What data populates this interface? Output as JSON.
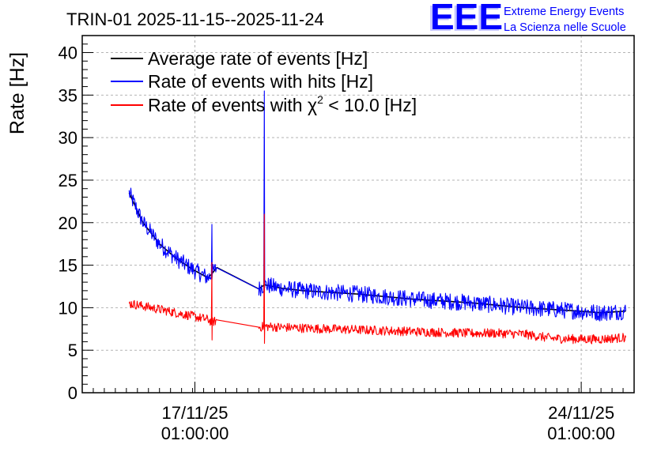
{
  "chart_data": {
    "type": "line",
    "title": "TRIN-01 2025-11-15--2025-11-24",
    "xlabel": "",
    "ylabel": "Rate [Hz]",
    "x_unit": "days since 2025-11-15 00:00",
    "xlim": [
      0.0,
      10.0
    ],
    "ylim": [
      0,
      42
    ],
    "y_ticks": [
      0,
      5,
      10,
      15,
      20,
      25,
      30,
      35,
      40
    ],
    "x_ticks": [
      {
        "x": 2.0417,
        "line1": "17/11/25",
        "line2": "01:00:00"
      },
      {
        "x": 9.0417,
        "line1": "24/11/25",
        "line2": "01:00:00"
      }
    ],
    "grid": true,
    "legend_position": "top-left",
    "x": [
      0.85,
      1.1,
      1.4,
      1.7,
      2.0,
      2.28,
      2.35,
      2.45,
      3.2,
      3.3,
      3.6,
      4.0,
      4.5,
      5.0,
      5.5,
      6.0,
      6.5,
      7.0,
      7.5,
      8.0,
      8.5,
      9.0,
      9.4,
      9.85
    ],
    "gap_index": 8,
    "series": [
      {
        "name": "Average rate of events [Hz]",
        "label_text": "Average rate of events [Hz]",
        "color": "#000000",
        "values": [
          23.5,
          20.0,
          17.5,
          15.8,
          14.5,
          13.5,
          14.0,
          14.8,
          12.2,
          12.7,
          12.3,
          12.0,
          11.8,
          11.6,
          11.3,
          11.0,
          10.8,
          10.6,
          10.3,
          10.0,
          9.8,
          9.6,
          9.4,
          9.6
        ]
      },
      {
        "name": "Rate of events with hits [Hz]",
        "label_text": "Rate of events with hits [Hz]",
        "color": "#0000ff",
        "values": [
          23.5,
          20.0,
          17.5,
          15.8,
          14.5,
          13.5,
          14.0,
          14.8,
          12.2,
          12.7,
          12.3,
          12.0,
          11.8,
          11.6,
          11.3,
          11.0,
          10.8,
          10.6,
          10.3,
          10.0,
          9.8,
          9.6,
          9.4,
          9.6
        ],
        "spikes": [
          {
            "x": 2.35,
            "peak": 19.8
          },
          {
            "x": 3.3,
            "peak": 35.5
          }
        ]
      },
      {
        "name": "Rate of events with χ² < 10.0 [Hz]",
        "label_prefix": "Rate of events with χ",
        "label_sup": "2",
        "label_suffix": " < 10.0 [Hz]",
        "color": "#ff0000",
        "values": [
          10.5,
          10.2,
          9.8,
          9.4,
          9.0,
          8.6,
          8.3,
          8.5,
          7.7,
          7.8,
          7.7,
          7.6,
          7.5,
          7.4,
          7.3,
          7.2,
          7.1,
          7.0,
          7.0,
          6.9,
          6.4,
          6.3,
          6.3,
          6.5
        ],
        "spikes": [
          {
            "x": 2.35,
            "peak": 15.3,
            "trough": 6.2
          },
          {
            "x": 3.3,
            "peak": 21.0,
            "trough": 5.8
          }
        ]
      }
    ]
  },
  "logo": {
    "letters": "EEE",
    "line1": "Extreme Energy Events",
    "line2": "La Scienza nelle Scuole",
    "color": "#0000ff"
  }
}
